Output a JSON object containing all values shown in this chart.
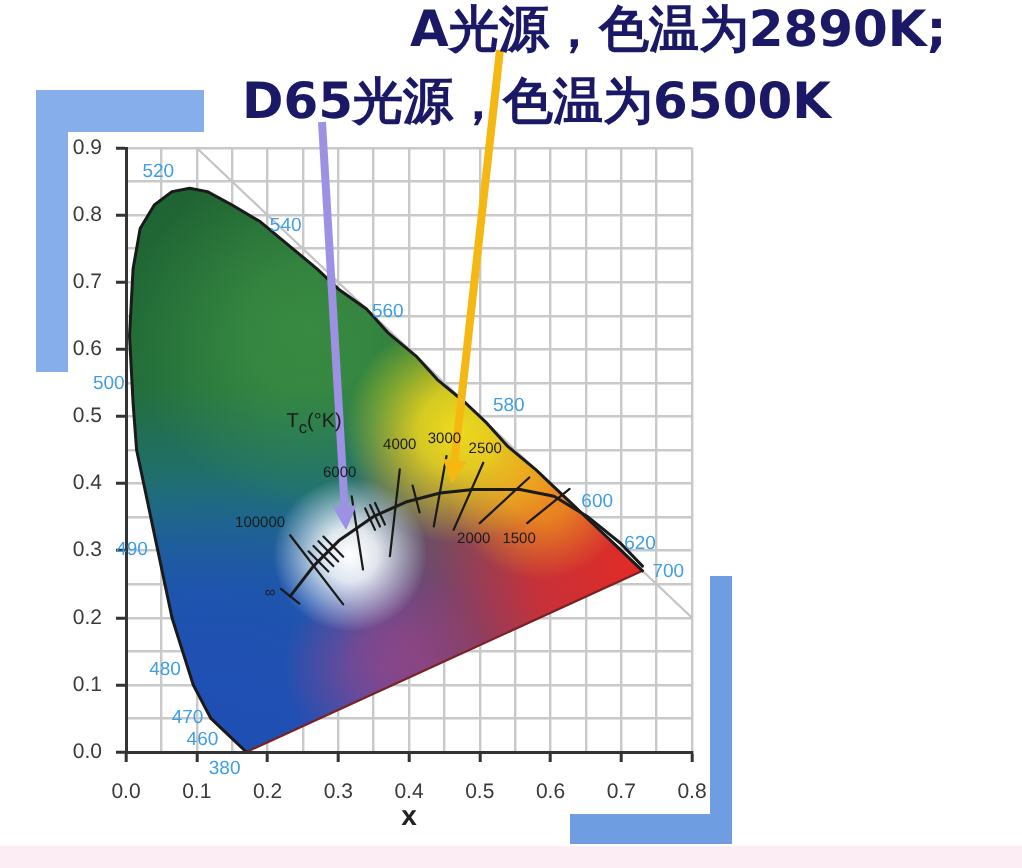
{
  "chart_data": {
    "type": "line",
    "xlabel": "x",
    "annotations": [
      "A光源，色温为2890K;",
      "D65光源，色温为6500K",
      {
        "text": "∞",
        "x": 0.232,
        "y": 0.232
      },
      {
        "text": "100000",
        "x": 0.232,
        "y": 0.323
      },
      {
        "text": "6000",
        "x": 0.319,
        "y": 0.381
      },
      {
        "text": "4000",
        "x": 0.387,
        "y": 0.421
      },
      {
        "text": "3000",
        "x": 0.453,
        "y": 0.441
      },
      {
        "text": "2500",
        "x": 0.505,
        "y": 0.431
      },
      {
        "text": "2000",
        "x": 0.5,
        "y": 0.341
      },
      {
        "text": "1500",
        "x": 0.567,
        "y": 0.341
      },
      {
        "text": "380",
        "x": 0.17,
        "y": 0.0
      },
      {
        "text": "460",
        "x": 0.14,
        "y": 0.03
      },
      {
        "text": "470",
        "x": 0.12,
        "y": 0.06
      },
      {
        "text": "480",
        "x": 0.09,
        "y": 0.13
      },
      {
        "text": "490",
        "x": 0.045,
        "y": 0.3
      },
      {
        "text": "500",
        "x": 0.01,
        "y": 0.54
      },
      {
        "text": "520",
        "x": 0.075,
        "y": 0.835
      },
      {
        "text": "540",
        "x": 0.23,
        "y": 0.755
      },
      {
        "text": "560",
        "x": 0.37,
        "y": 0.625
      },
      {
        "text": "580",
        "x": 0.51,
        "y": 0.49
      },
      {
        "text": "600",
        "x": 0.63,
        "y": 0.37
      },
      {
        "text": "620",
        "x": 0.69,
        "y": 0.31
      },
      {
        "text": "700",
        "x": 0.73,
        "y": 0.27
      }
    ],
    "xlim": [
      0,
      0.8
    ],
    "ylim": [
      0,
      0.9
    ],
    "xticks": [
      {
        "value": 0,
        "label": "0.0"
      },
      {
        "value": 0.05,
        "label": null
      },
      {
        "value": 0.1,
        "label": "0.1"
      },
      {
        "value": 0.15,
        "label": null
      },
      {
        "value": 0.2,
        "label": "0.2"
      },
      {
        "value": 0.25,
        "label": null
      },
      {
        "value": 0.3,
        "label": "0.3"
      },
      {
        "value": 0.35,
        "label": null
      },
      {
        "value": 0.4,
        "label": "0.4"
      },
      {
        "value": 0.45,
        "label": null
      },
      {
        "value": 0.5,
        "label": "0.5"
      },
      {
        "value": 0.55,
        "label": null
      },
      {
        "value": 0.6,
        "label": "0.6"
      },
      {
        "value": 0.65,
        "label": null
      },
      {
        "value": 0.7,
        "label": "0.7"
      },
      {
        "value": 0.75,
        "label": null
      },
      {
        "value": 0.8,
        "label": "0.8"
      }
    ],
    "yticks": [
      {
        "value": 0,
        "label": "0.0"
      },
      {
        "value": 0.05,
        "label": null
      },
      {
        "value": 0.1,
        "label": "0.1"
      },
      {
        "value": 0.15,
        "label": null
      },
      {
        "value": 0.2,
        "label": "0.2"
      },
      {
        "value": 0.25,
        "label": null
      },
      {
        "value": 0.3,
        "label": "0.3"
      },
      {
        "value": 0.35,
        "label": null
      },
      {
        "value": 0.4,
        "label": "0.4"
      },
      {
        "value": 0.45,
        "label": null
      },
      {
        "value": 0.5,
        "label": "0.5"
      },
      {
        "value": 0.55,
        "label": null
      },
      {
        "value": 0.6,
        "label": "0.6"
      },
      {
        "value": 0.65,
        "label": null
      },
      {
        "value": 0.7,
        "label": "0.7"
      },
      {
        "value": 0.75,
        "label": null
      },
      {
        "value": 0.8,
        "label": "0.8"
      },
      {
        "value": 0.85,
        "label": null
      },
      {
        "value": 0.9,
        "label": "0.9"
      }
    ],
    "grid": true,
    "series": [
      {
        "color": "#1a1a1a",
        "x": [
          0.17,
          0.14,
          0.12,
          0.095,
          0.08,
          0.065,
          0.055,
          0.045,
          0.035,
          0.025,
          0.015,
          0.01,
          0.005,
          0.01,
          0.02,
          0.04,
          0.065,
          0.09,
          0.115,
          0.15,
          0.19,
          0.23,
          0.27,
          0.3,
          0.34,
          0.37,
          0.41,
          0.44,
          0.48,
          0.51,
          0.54,
          0.58,
          0.6,
          0.63,
          0.67,
          0.69,
          0.71,
          0.73
        ],
        "values": [
          0.0,
          0.03,
          0.05,
          0.1,
          0.15,
          0.2,
          0.25,
          0.3,
          0.35,
          0.4,
          0.45,
          0.52,
          0.62,
          0.72,
          0.78,
          0.815,
          0.835,
          0.84,
          0.835,
          0.815,
          0.79,
          0.755,
          0.72,
          0.69,
          0.66,
          0.625,
          0.59,
          0.555,
          0.52,
          0.49,
          0.455,
          0.42,
          0.4,
          0.37,
          0.33,
          0.31,
          0.29,
          0.27
        ]
      },
      {
        "color": "#7a2222",
        "x": [
          0.73,
          0.17
        ],
        "values": [
          0.27,
          0.0
        ]
      },
      {
        "color": "#c4c4c4",
        "x": [
          0.1,
          0.8
        ],
        "values": [
          0.9,
          0.2
        ]
      },
      {
        "name": "T$_{c}$(°K)",
        "color": "#1a1a1a",
        "x": [
          0.232,
          0.265,
          0.302,
          0.35,
          0.397,
          0.444,
          0.491,
          0.557,
          0.605,
          0.652,
          0.699,
          0.73
        ],
        "values": [
          0.232,
          0.277,
          0.316,
          0.351,
          0.373,
          0.386,
          0.391,
          0.391,
          0.381,
          0.351,
          0.311,
          0.277
        ]
      },
      {
        "color": "#1a1a1a",
        "x": [
          0.219,
          0.245
        ],
        "values": [
          0.243,
          0.221
        ]
      },
      {
        "color": "#1a1a1a",
        "x": [
          0.307,
          0.232
        ],
        "values": [
          0.22,
          0.323
        ]
      },
      {
        "color": "#1a1a1a",
        "x": [
          0.258,
          0.286
        ],
        "values": [
          0.299,
          0.269
        ]
      },
      {
        "color": "#1a1a1a",
        "x": [
          0.265,
          0.293
        ],
        "values": [
          0.307,
          0.277
        ]
      },
      {
        "color": "#1a1a1a",
        "x": [
          0.272,
          0.3
        ],
        "values": [
          0.314,
          0.284
        ]
      },
      {
        "color": "#1a1a1a",
        "x": [
          0.279,
          0.307
        ],
        "values": [
          0.321,
          0.291
        ]
      },
      {
        "color": "#1a1a1a",
        "x": [
          0.335,
          0.319
        ],
        "values": [
          0.272,
          0.381
        ]
      },
      {
        "color": "#1a1a1a",
        "x": [
          0.338,
          0.352
        ],
        "values": [
          0.363,
          0.331
        ]
      },
      {
        "color": "#1a1a1a",
        "x": [
          0.345,
          0.359
        ],
        "values": [
          0.368,
          0.336
        ]
      },
      {
        "color": "#1a1a1a",
        "x": [
          0.352,
          0.366
        ],
        "values": [
          0.371,
          0.339
        ]
      },
      {
        "color": "#1a1a1a",
        "x": [
          0.373,
          0.387
        ],
        "values": [
          0.292,
          0.421
        ]
      },
      {
        "color": "#1a1a1a",
        "x": [
          0.405,
          0.415
        ],
        "values": [
          0.397,
          0.357
        ]
      },
      {
        "color": "#1a1a1a",
        "x": [
          0.435,
          0.453
        ],
        "values": [
          0.336,
          0.441
        ]
      },
      {
        "color": "#1a1a1a",
        "x": [
          0.463,
          0.505
        ],
        "values": [
          0.331,
          0.431
        ]
      },
      {
        "color": "#1a1a1a",
        "x": [
          0.5,
          0.57
        ],
        "values": [
          0.341,
          0.409
        ]
      },
      {
        "color": "#1a1a1a",
        "x": [
          0.567,
          0.627
        ],
        "values": [
          0.341,
          0.392
        ]
      }
    ]
  }
}
